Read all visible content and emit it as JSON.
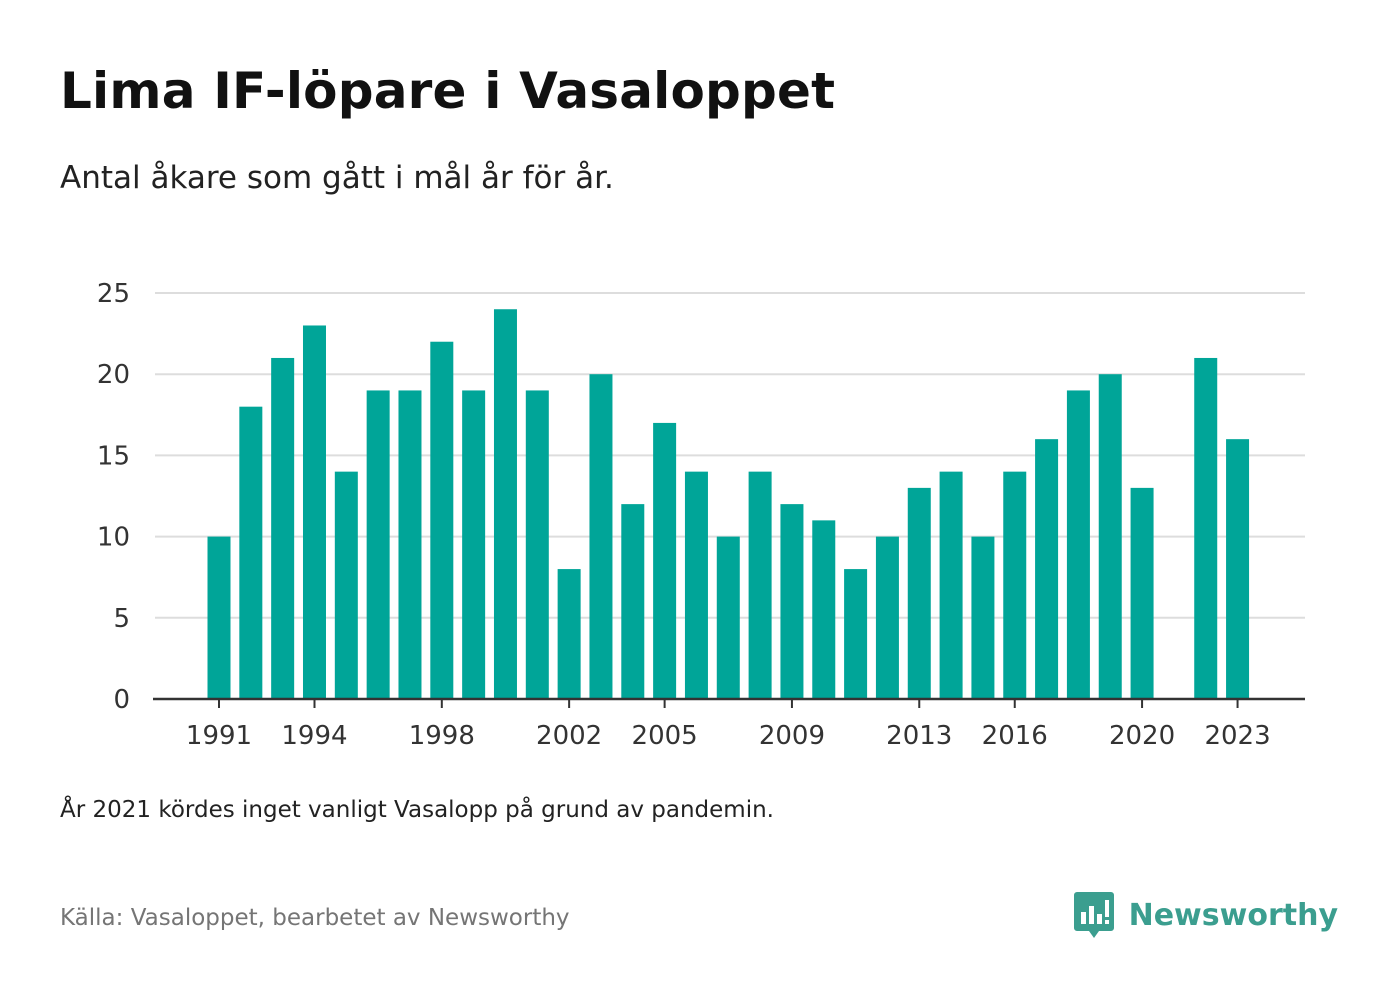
{
  "header": {
    "title": "Lima IF-löpare i Vasaloppet",
    "subtitle": "Antal åkare som gått i mål år för år."
  },
  "footer": {
    "note": "År 2021 kördes inget vanligt Vasalopp på grund av pandemin.",
    "source": "Källa: Vasaloppet, bearbetet av Newsworthy",
    "brand": "Newsworthy"
  },
  "colors": {
    "bar": "#00a598",
    "grid": "#dddddd",
    "axis": "#333333",
    "brand": "#3b9e8f"
  },
  "chart_data": {
    "type": "bar",
    "title": "Lima IF-löpare i Vasaloppet",
    "subtitle": "Antal åkare som gått i mål år för år.",
    "xlabel": "",
    "ylabel": "",
    "ylim": [
      0,
      25
    ],
    "yticks": [
      0,
      5,
      10,
      15,
      20,
      25
    ],
    "xtick_labels": [
      "1991",
      "1994",
      "1998",
      "2002",
      "2005",
      "2009",
      "2013",
      "2016",
      "2020",
      "2023"
    ],
    "grid": true,
    "legend": "none",
    "categories": [
      "1991",
      "1992",
      "1993",
      "1994",
      "1995",
      "1996",
      "1997",
      "1998",
      "1999",
      "2000",
      "2001",
      "2002",
      "2003",
      "2004",
      "2005",
      "2006",
      "2007",
      "2008",
      "2009",
      "2010",
      "2011",
      "2012",
      "2013",
      "2014",
      "2015",
      "2016",
      "2017",
      "2018",
      "2019",
      "2020",
      "2021",
      "2022",
      "2023"
    ],
    "values": [
      10,
      18,
      21,
      23,
      14,
      19,
      19,
      22,
      19,
      24,
      19,
      8,
      20,
      12,
      17,
      14,
      10,
      14,
      12,
      11,
      8,
      10,
      13,
      14,
      10,
      14,
      16,
      19,
      20,
      13,
      null,
      21,
      16
    ]
  }
}
